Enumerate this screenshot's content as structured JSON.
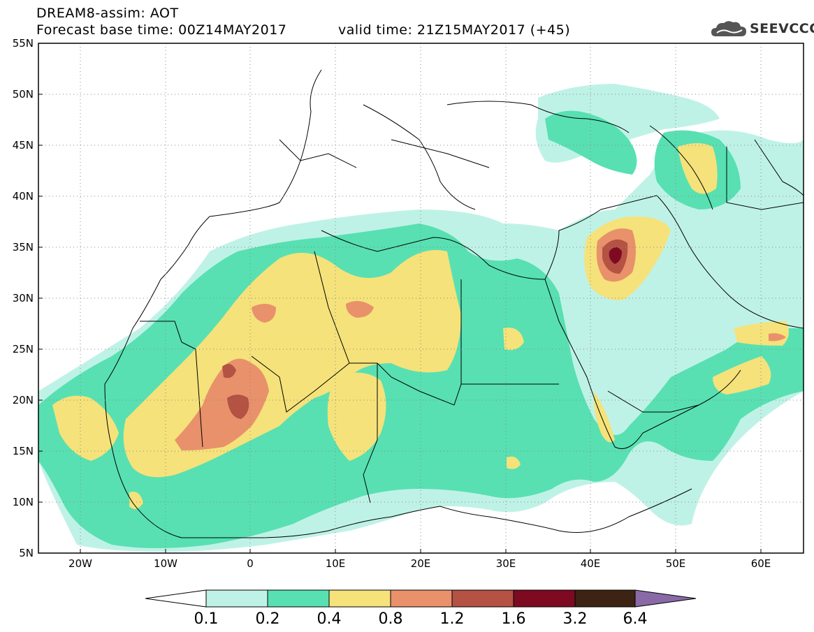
{
  "header": {
    "model_title": "DREAM8-assim: AOT",
    "base_time": "Forecast base time: 00Z14MAY2017",
    "valid_time": "valid time: 21Z15MAY2017 (+45)",
    "logo_text": "SEEVCCC"
  },
  "map": {
    "lat_labels": [
      "55N",
      "50N",
      "45N",
      "40N",
      "35N",
      "30N",
      "25N",
      "20N",
      "15N",
      "10N",
      "5N"
    ],
    "lon_labels": [
      "20W",
      "10W",
      "0",
      "10E",
      "20E",
      "30E",
      "40E",
      "50E",
      "60E"
    ],
    "lat_range": [
      5,
      55
    ],
    "lon_range": [
      -25,
      65
    ]
  },
  "colorbar": {
    "labels": [
      "0.1",
      "0.2",
      "0.4",
      "0.8",
      "1.2",
      "1.6",
      "3.2",
      "6.4"
    ],
    "colors": [
      "#ffffff",
      "#bff2e6",
      "#58e0b2",
      "#f5e27a",
      "#e8916b",
      "#b45243",
      "#7e0a22",
      "#3c2313",
      "#8a6aa6"
    ]
  }
}
